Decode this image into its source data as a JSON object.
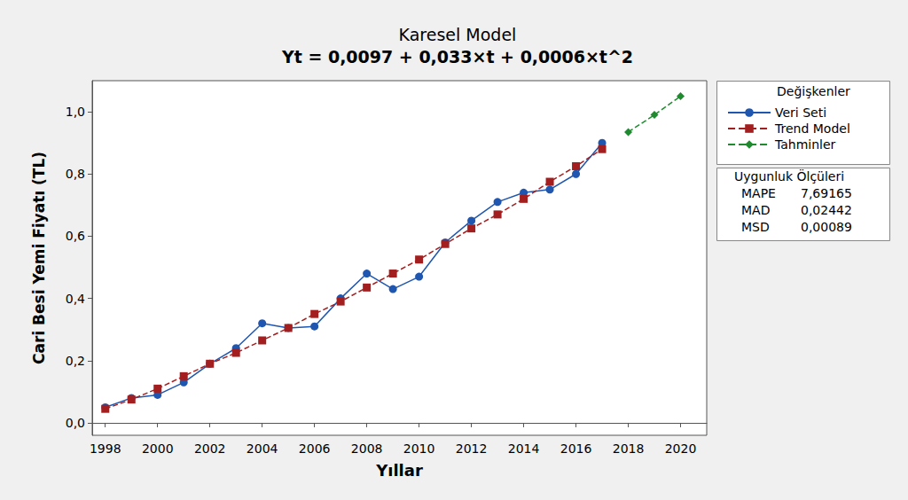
{
  "chart_data": {
    "type": "line",
    "title": "Karesel Model",
    "subtitle": "Yt = 0,0097 + 0,033×t + 0,0006×t^2",
    "x_label": "Yıllar",
    "y_label": "Cari Besi Yemi Fiyatı (TL)",
    "legend_title": "Değişkenler",
    "legend": "right",
    "grid": false,
    "xlim": [
      1997.5,
      2021
    ],
    "xticks": [
      1998,
      2000,
      2002,
      2004,
      2006,
      2008,
      2010,
      2012,
      2014,
      2016,
      2018,
      2020
    ],
    "ylim": [
      -0.04,
      1.1
    ],
    "yticks": [
      {
        "value": 0,
        "label": "0,0"
      },
      {
        "value": 0.2,
        "label": "0,2"
      },
      {
        "value": 0.4,
        "label": "0,4"
      },
      {
        "value": 0.6,
        "label": "0,6"
      },
      {
        "value": 0.8,
        "label": "0,8"
      },
      {
        "value": 1.0,
        "label": "1,0"
      }
    ],
    "series": [
      {
        "name": "Veri Seti",
        "color": "#1f56b0",
        "marker": "circle",
        "line_style": "solid",
        "x": [
          1998,
          1999,
          2000,
          2001,
          2002,
          2003,
          2004,
          2005,
          2006,
          2007,
          2008,
          2009,
          2010,
          2011,
          2012,
          2013,
          2014,
          2015,
          2016,
          2017
        ],
        "values": [
          0.05,
          0.08,
          0.09,
          0.13,
          0.19,
          0.24,
          0.32,
          0.305,
          0.31,
          0.4,
          0.48,
          0.43,
          0.47,
          0.58,
          0.65,
          0.71,
          0.74,
          0.75,
          0.8,
          0.9
        ]
      },
      {
        "name": "Trend Model",
        "color": "#a31e1e",
        "marker": "square",
        "line_style": "dashed",
        "x": [
          1998,
          1999,
          2000,
          2001,
          2002,
          2003,
          2004,
          2005,
          2006,
          2007,
          2008,
          2009,
          2010,
          2011,
          2012,
          2013,
          2014,
          2015,
          2016,
          2017
        ],
        "values": [
          0.045,
          0.075,
          0.11,
          0.15,
          0.19,
          0.225,
          0.265,
          0.305,
          0.35,
          0.39,
          0.435,
          0.48,
          0.525,
          0.575,
          0.625,
          0.67,
          0.72,
          0.775,
          0.825,
          0.88
        ]
      },
      {
        "name": "Tahminler",
        "color": "#1e8c2e",
        "marker": "diamond",
        "line_style": "dashed",
        "x": [
          2018,
          2019,
          2020
        ],
        "values": [
          0.935,
          0.99,
          1.05
        ]
      }
    ],
    "fit_measures": {
      "title": "Uygunluk Ölçüleri",
      "rows": [
        {
          "label": "MAPE",
          "value": 7.69165,
          "value_label": "7,69165"
        },
        {
          "label": "MAD",
          "value": 0.02442,
          "value_label": "0,02442"
        },
        {
          "label": "MSD",
          "value": 0.00089,
          "value_label": "0,00089"
        }
      ]
    }
  }
}
